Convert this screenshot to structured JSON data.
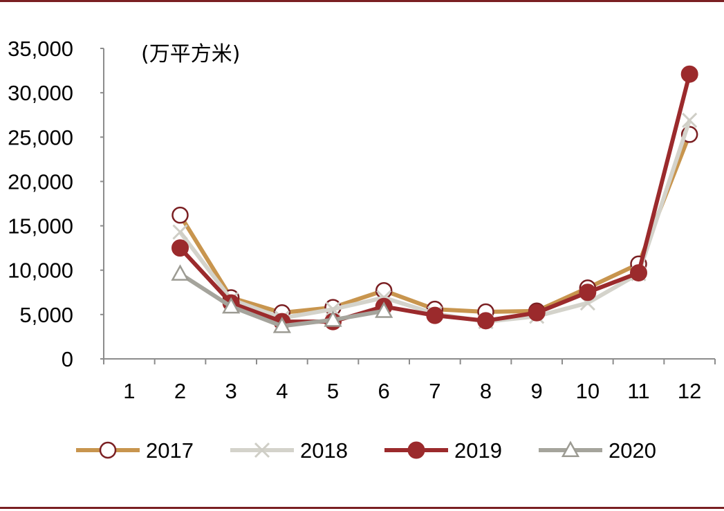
{
  "chart_data": {
    "type": "line",
    "title": "",
    "unit_label": "(万平方米)",
    "categories": [
      "1",
      "2",
      "3",
      "4",
      "5",
      "6",
      "7",
      "8",
      "9",
      "10",
      "11",
      "12"
    ],
    "ylim": [
      0,
      35000
    ],
    "yticks": [
      0,
      5000,
      10000,
      15000,
      20000,
      25000,
      30000,
      35000
    ],
    "ytick_labels": [
      "0",
      "5,000",
      "10,000",
      "15,000",
      "20,000",
      "25,000",
      "30,000",
      "35,000"
    ],
    "grid": false,
    "legend_position": "bottom",
    "series": [
      {
        "name": "2017",
        "color": "#c8954e",
        "marker": "open-circle",
        "marker_color": "#7a1f22",
        "values": [
          null,
          16200,
          6900,
          5200,
          5800,
          7700,
          5600,
          5300,
          5400,
          8000,
          10700,
          25300
        ]
      },
      {
        "name": "2018",
        "color": "#d4d3cb",
        "marker": "x",
        "marker_color": "#cfcec6",
        "values": [
          null,
          14300,
          6700,
          4600,
          5600,
          6900,
          5100,
          4200,
          4800,
          6300,
          9600,
          26900
        ]
      },
      {
        "name": "2019",
        "color": "#9b2a2c",
        "marker": "filled-circle",
        "marker_color": "#9b2a2c",
        "values": [
          null,
          12500,
          6300,
          4200,
          4200,
          5900,
          4900,
          4300,
          5200,
          7500,
          9700,
          32100
        ]
      },
      {
        "name": "2020",
        "color": "#a5a49c",
        "marker": "open-triangle",
        "marker_color": "#9c9b93",
        "values": [
          null,
          9600,
          5900,
          3700,
          4400,
          5400,
          null,
          null,
          null,
          null,
          null,
          null
        ]
      }
    ]
  }
}
